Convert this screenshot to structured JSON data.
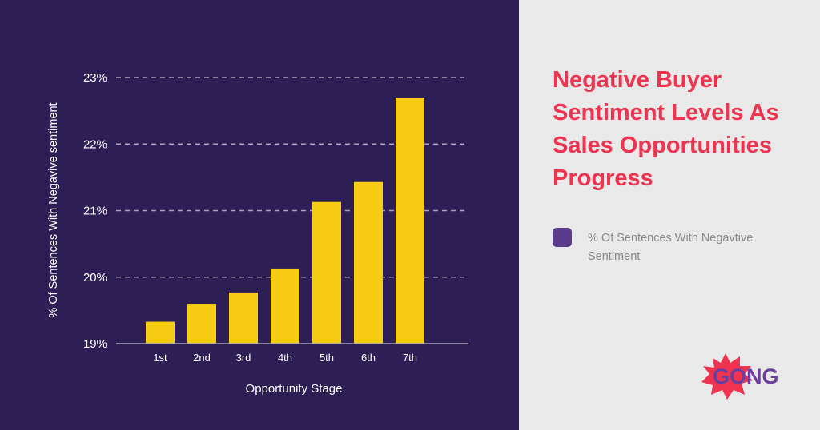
{
  "colors": {
    "background_left": "#2d1f55",
    "background_right": "#e9e9ea",
    "bar": "#f5cc12",
    "gridline": "#a9a3bb",
    "text_light": "#ffffff",
    "title": "#f0344f",
    "legend_swatch": "#5a3c8c",
    "logo_burst": "#f0344f",
    "logo_text": "#6b3fa0"
  },
  "chart_data": {
    "type": "bar",
    "categories": [
      "1st",
      "2nd",
      "3rd",
      "4th",
      "5th",
      "6th",
      "7th"
    ],
    "values": [
      19.33,
      19.6,
      19.77,
      20.13,
      21.13,
      21.43,
      22.7
    ],
    "xlabel": "Opportunity Stage",
    "ylabel": "% Of Sentences With Negavive sentiment",
    "ylim": [
      19,
      23
    ],
    "yticks": [
      19,
      20,
      21,
      22,
      23
    ],
    "ytick_labels": [
      "19%",
      "20%",
      "21%",
      "22%",
      "23%"
    ],
    "grid": "dashed-horizontal",
    "series_name": "% Of Sentences With Negavtive Sentiment"
  },
  "title": "Negative Buyer Sentiment Levels As Sales Opportunities Progress",
  "legend": {
    "label": "% Of Sentences With Negavtive Sentiment",
    "icon": "rounded-square-swatch"
  },
  "logo": {
    "text": "GONG",
    "icon": "burst-star"
  }
}
